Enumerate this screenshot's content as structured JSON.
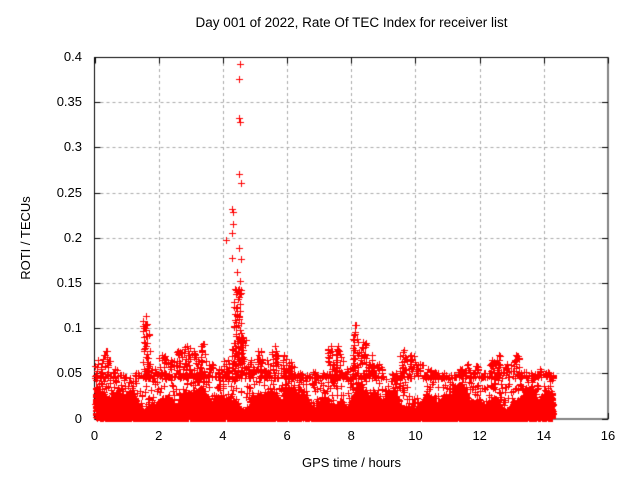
{
  "chart_data": {
    "type": "scatter",
    "title": "Day 001 of 2022, Rate Of TEC Index for receiver list",
    "xlabel": "GPS time / hours",
    "ylabel": "ROTI / TECUs",
    "xlim": [
      0,
      16
    ],
    "ylim": [
      0,
      0.4
    ],
    "xticks": [
      0,
      2,
      4,
      6,
      8,
      10,
      12,
      14,
      16
    ],
    "yticks": [
      0,
      0.05,
      0.1,
      0.15,
      0.2,
      0.25,
      0.3,
      0.35,
      0.4
    ],
    "xtick_labels": [
      "0",
      "2",
      "4",
      "6",
      "8",
      "10",
      "12",
      "14",
      "16"
    ],
    "ytick_labels": [
      "0",
      "0.05",
      "0.1",
      "0.15",
      "0.2",
      "0.25",
      "0.3",
      "0.35",
      "0.4"
    ],
    "grid": {
      "show": true,
      "style": "dashed",
      "color": "#a8a8a8"
    },
    "frame_color": "#000000",
    "marker": {
      "shape": "plus",
      "color": "#ff0000",
      "size": 7
    },
    "legend": null,
    "series_name": "ROTI for receiver list",
    "x_data_range": [
      0.03,
      14.3
    ],
    "reconstruction": {
      "note": "dense noise band 0-0.05 TECUs from hour 0 to 14.3; per-quarter-hour envelope maxima and large outlier spike near hour 4.5",
      "band": {
        "x_start": 0.03,
        "x_end": 14.28,
        "solid_top_min": 0.008,
        "solid_top_max": 0.04,
        "texture_top": 0.048
      },
      "envelope": {
        "start_hour": 0.0,
        "step_hours": 0.25,
        "max_values": [
          0.065,
          0.075,
          0.055,
          0.048,
          0.042,
          0.05,
          0.113,
          0.055,
          0.07,
          0.065,
          0.075,
          0.08,
          0.075,
          0.082,
          0.06,
          0.055,
          0.065,
          0.08,
          0.09,
          0.065,
          0.075,
          0.065,
          0.08,
          0.07,
          0.063,
          0.05,
          0.048,
          0.052,
          0.05,
          0.08,
          0.08,
          0.055,
          0.103,
          0.085,
          0.07,
          0.06,
          0.045,
          0.05,
          0.076,
          0.07,
          0.06,
          0.055,
          0.052,
          0.05,
          0.048,
          0.055,
          0.06,
          0.058,
          0.05,
          0.065,
          0.07,
          0.06,
          0.07,
          0.052,
          0.05,
          0.055,
          0.052,
          0.048
        ]
      },
      "clusters": [
        {
          "x_center": 4.48,
          "x_spread": 0.3,
          "v_min": 0.058,
          "v_max": 0.146,
          "count": 60
        }
      ],
      "outliers": [
        [
          4.52,
          0.392
        ],
        [
          4.5,
          0.376
        ],
        [
          4.51,
          0.333
        ],
        [
          4.52,
          0.328
        ],
        [
          4.51,
          0.271
        ],
        [
          4.55,
          0.261
        ],
        [
          4.29,
          0.232
        ],
        [
          4.3,
          0.228
        ],
        [
          4.31,
          0.215
        ],
        [
          4.28,
          0.205
        ],
        [
          4.11,
          0.198
        ],
        [
          4.5,
          0.189
        ],
        [
          4.27,
          0.178
        ],
        [
          4.55,
          0.177
        ],
        [
          4.45,
          0.162
        ],
        [
          4.53,
          0.152
        ]
      ]
    }
  }
}
